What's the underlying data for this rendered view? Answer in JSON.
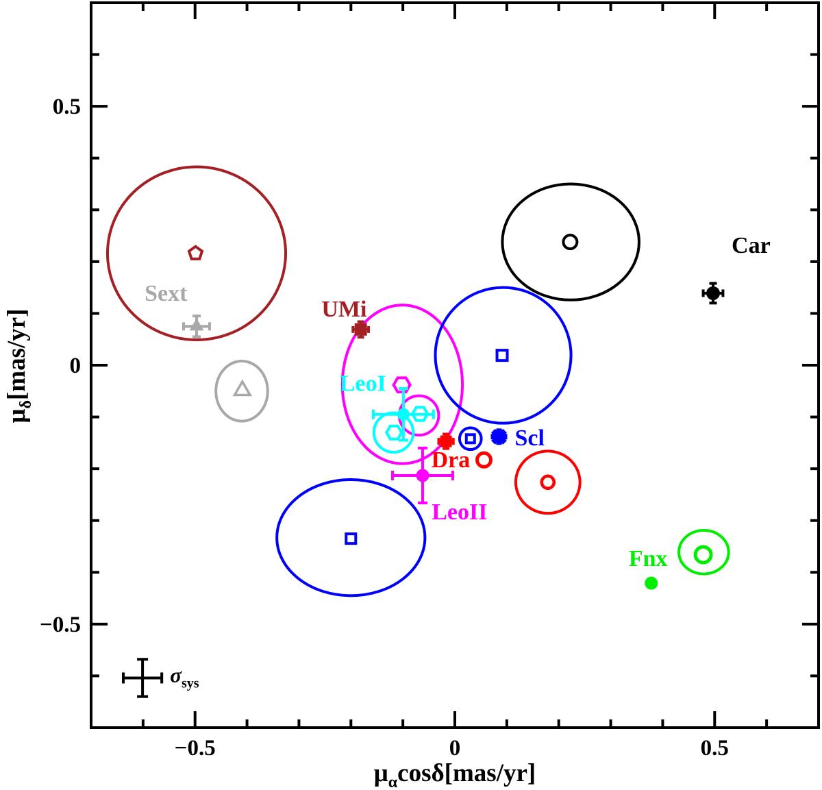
{
  "figure": {
    "background": "#FFFFFF",
    "palette": {
      "black": "#000000",
      "darkred": "#A32125",
      "gray": "#A8A8A8",
      "magenta": "#FF00FF",
      "cyan": "#00FFFF",
      "blue": "#0000FF",
      "red": "#FF0000",
      "green": "#00EE00"
    }
  },
  "chart_data": {
    "type": "scatter",
    "title": "",
    "xlabel": "mu_alpha * cos(delta) [mas/yr]",
    "ylabel": "mu_delta [mas/yr]",
    "axes": {
      "xlim": [
        -0.7,
        0.7
      ],
      "ylim": [
        -0.7,
        0.7
      ],
      "minor_tick_step": 0.1,
      "major_ticks": [
        -0.5,
        0,
        0.5
      ],
      "x_tick_labels": [
        {
          "v": -0.5,
          "t": "−0.5"
        },
        {
          "v": 0,
          "t": "0"
        },
        {
          "v": 0.5,
          "t": "0.5"
        }
      ],
      "y_tick_labels": [
        {
          "v": 0.5,
          "t": "0.5"
        },
        {
          "v": 0,
          "t": "0"
        },
        {
          "v": -0.5,
          "t": "−0.5"
        }
      ],
      "xlabel_parts": [
        {
          "t": "μ"
        },
        {
          "t": "α",
          "sub": true
        },
        {
          "t": "cosδ[mas/yr]"
        }
      ],
      "ylabel_parts": [
        {
          "t": "μ"
        },
        {
          "t": "δ",
          "sub": true
        },
        {
          "t": "[mas/yr]"
        }
      ]
    },
    "ellipses": [
      {
        "name": "sextans-darkred-ellipse",
        "cx": -0.497,
        "cy": 0.216,
        "rx": 0.172,
        "ry": 0.167,
        "color": "darkred"
      },
      {
        "name": "sextans-gray-ellipse",
        "cx": -0.41,
        "cy": -0.05,
        "rx": 0.05,
        "ry": 0.058,
        "color": "gray"
      },
      {
        "name": "umi-magenta-ellipse",
        "cx": -0.101,
        "cy": -0.037,
        "rx": 0.116,
        "ry": 0.153,
        "color": "magenta"
      },
      {
        "name": "blue-upper-ellipse",
        "cx": 0.093,
        "cy": 0.019,
        "rx": 0.131,
        "ry": 0.131,
        "color": "blue"
      },
      {
        "name": "black-ellipse",
        "cx": 0.223,
        "cy": 0.238,
        "rx": 0.132,
        "ry": 0.112,
        "color": "black"
      },
      {
        "name": "magenta-small-circle",
        "cx": -0.069,
        "cy": -0.097,
        "rx": 0.038,
        "ry": 0.038,
        "color": "magenta"
      },
      {
        "name": "cyan-small-circle",
        "cx": -0.118,
        "cy": -0.13,
        "rx": 0.038,
        "ry": 0.038,
        "color": "cyan"
      },
      {
        "name": "scl-blue-circle",
        "cx": 0.03,
        "cy": -0.142,
        "rx": 0.021,
        "ry": 0.021,
        "color": "blue"
      },
      {
        "name": "red-ellipse",
        "cx": 0.179,
        "cy": -0.226,
        "rx": 0.062,
        "ry": 0.06,
        "color": "red"
      },
      {
        "name": "blue-lower-ellipse",
        "cx": -0.2,
        "cy": -0.333,
        "rx": 0.143,
        "ry": 0.112,
        "color": "blue"
      },
      {
        "name": "fnx-green-ellipse",
        "cx": 0.479,
        "cy": -0.361,
        "rx": 0.048,
        "ry": 0.042,
        "color": "green"
      }
    ],
    "markers": [
      {
        "name": "sextans-pentagon",
        "shape": "pentagon",
        "x": -0.499,
        "y": 0.216,
        "size": 10,
        "color": "darkred",
        "filled": false
      },
      {
        "name": "sextans-triangle",
        "shape": "triangle",
        "x": -0.497,
        "y": 0.075,
        "size": 12,
        "color": "gray",
        "filled": true,
        "xerr": 0.025,
        "yerr": 0.02,
        "cap": 6
      },
      {
        "name": "sextans-open-triangle",
        "shape": "triangle",
        "x": -0.409,
        "y": -0.049,
        "size": 13,
        "color": "gray",
        "filled": false
      },
      {
        "name": "umi-square",
        "shape": "square",
        "x": -0.181,
        "y": 0.069,
        "size": 9,
        "color": "darkred",
        "filled": true,
        "xerr": 0.015,
        "yerr": 0.015,
        "cap": 5
      },
      {
        "name": "umi-hexagon",
        "shape": "hexagon",
        "x": -0.102,
        "y": -0.038,
        "size": 12,
        "color": "magenta",
        "filled": false
      },
      {
        "name": "blue-upper-square",
        "shape": "square",
        "x": 0.091,
        "y": 0.019,
        "size": 7.5,
        "color": "blue",
        "filled": false
      },
      {
        "name": "black-open-circle",
        "shape": "circle",
        "x": 0.222,
        "y": 0.238,
        "size": 10,
        "color": "black",
        "filled": false
      },
      {
        "name": "car-dot",
        "shape": "circle",
        "x": 0.497,
        "y": 0.139,
        "size": 10,
        "color": "black",
        "filled": true,
        "xerr": 0.019,
        "yerr": 0.019,
        "cap": 5.5
      },
      {
        "name": "leo1-dot",
        "shape": "circle",
        "x": -0.099,
        "y": -0.095,
        "size": 9,
        "color": "cyan",
        "filled": true,
        "xerr": 0.058,
        "yerr": 0.05,
        "cap": 7
      },
      {
        "name": "leo1-hexagon-right",
        "shape": "hexagon",
        "x": -0.067,
        "y": -0.094,
        "size": 11,
        "color": "cyan",
        "filled": false
      },
      {
        "name": "leo1-hexagon-lower",
        "shape": "hexagon",
        "x": -0.117,
        "y": -0.13,
        "size": 11,
        "color": "cyan",
        "filled": false
      },
      {
        "name": "dra-square",
        "shape": "square",
        "x": -0.017,
        "y": -0.147,
        "size": 8.5,
        "color": "red",
        "filled": true,
        "xerr": 0.014,
        "yerr": 0.014,
        "cap": 5
      },
      {
        "name": "dra-open-circle",
        "shape": "circle",
        "x": 0.056,
        "y": -0.183,
        "size": 10,
        "color": "red",
        "filled": false,
        "sw": 5
      },
      {
        "name": "scl-open-square",
        "shape": "square",
        "x": 0.03,
        "y": -0.142,
        "size": 6,
        "color": "blue",
        "filled": false
      },
      {
        "name": "scl-asterisk",
        "shape": "asterisk",
        "x": 0.085,
        "y": -0.138,
        "size": 12,
        "color": "blue",
        "filled": true
      },
      {
        "name": "red-open-circle",
        "shape": "circle",
        "x": 0.179,
        "y": -0.226,
        "size": 9,
        "color": "red",
        "filled": false,
        "sw": 4.5
      },
      {
        "name": "leo2-dot",
        "shape": "circle",
        "x": -0.062,
        "y": -0.213,
        "size": 9.5,
        "color": "magenta",
        "filled": true,
        "xerr": 0.058,
        "yerr": 0.053,
        "cap": 7
      },
      {
        "name": "blue-lower-square",
        "shape": "square",
        "x": -0.2,
        "y": -0.335,
        "size": 7,
        "color": "blue",
        "filled": false
      },
      {
        "name": "fnx-open-circle",
        "shape": "circle",
        "x": 0.478,
        "y": -0.366,
        "size": 11.5,
        "color": "green",
        "filled": false,
        "sw": 5
      },
      {
        "name": "fnx-dot",
        "shape": "circle",
        "x": 0.378,
        "y": -0.421,
        "size": 9.5,
        "color": "green",
        "filled": true
      },
      {
        "name": "sigma-sys-cross",
        "shape": "cross",
        "x": -0.601,
        "y": -0.604,
        "size": 0,
        "color": "black",
        "filled": false,
        "xerr": 0.037,
        "yerr": 0.036,
        "cap": 8
      }
    ],
    "labels": [
      {
        "name": "label-sext",
        "text": "Sext",
        "x": -0.556,
        "y": 0.14,
        "color": "gray"
      },
      {
        "name": "label-umi",
        "text": "UMi",
        "x": -0.213,
        "y": 0.11,
        "color": "darkred"
      },
      {
        "name": "label-leo1",
        "text": "LeoI",
        "x": -0.177,
        "y": -0.034,
        "color": "cyan"
      },
      {
        "name": "label-dra",
        "text": "Dra",
        "x": -0.008,
        "y": -0.181,
        "color": "red"
      },
      {
        "name": "label-scl",
        "text": "Scl",
        "x": 0.144,
        "y": -0.139,
        "color": "blue"
      },
      {
        "name": "label-leo2",
        "text": "LeoII",
        "x": 0.009,
        "y": -0.282,
        "color": "magenta"
      },
      {
        "name": "label-car",
        "text": "Car",
        "x": 0.57,
        "y": 0.233,
        "color": "black"
      },
      {
        "name": "label-fnx",
        "text": "Fnx",
        "x": 0.372,
        "y": -0.372,
        "color": "green"
      }
    ],
    "sigma_label": {
      "name": "label-sigma-sys",
      "parts": [
        {
          "t": "σ"
        },
        {
          "t": "sys",
          "sub": true
        }
      ],
      "x": -0.548,
      "y": -0.612,
      "color": "black"
    }
  }
}
